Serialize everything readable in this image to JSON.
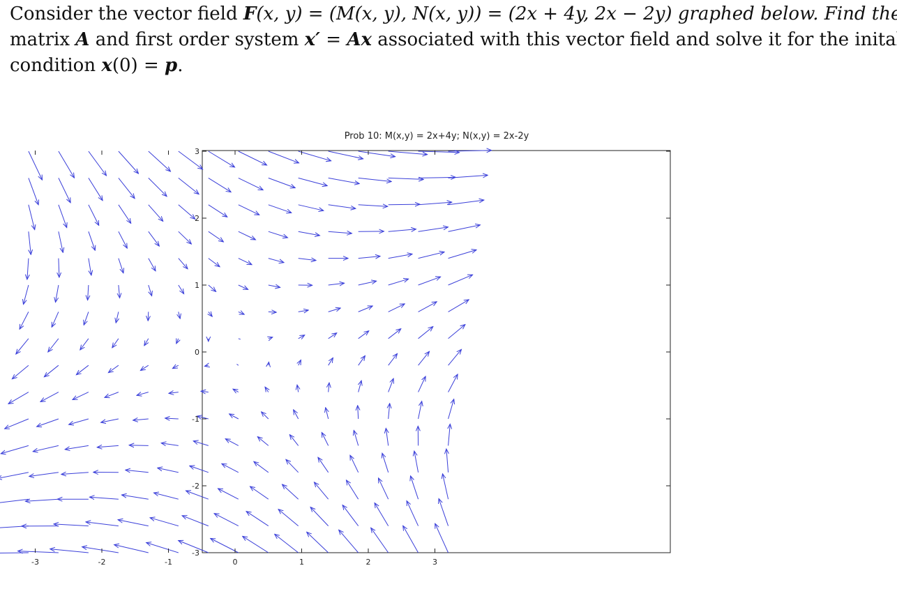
{
  "problem": {
    "line1_a": "Consider the vector field ",
    "line1_F": "F",
    "line1_b": "(x, y) = (M(x, y), N(x, y)) = (2x + 4y, 2x − 2y) graphed below. Find the",
    "line2_a": "matrix ",
    "line2_A": "A",
    "line2_b": " and first order system ",
    "line2_x": "x′",
    "line2_c": " = ",
    "line2_Ax": "Ax",
    "line2_d": " associated with this vector field and solve it for the inital",
    "line3_a": "condition ",
    "line3_x": "x",
    "line3_b": "(0) = ",
    "line3_p": "p",
    "line3_c": "."
  },
  "chart_data": {
    "type": "quiver",
    "title": "Prob 10: M(x,y) = 2x+4y; N(x,y) = 2x-2y",
    "xlabel": "",
    "ylabel": "",
    "field": {
      "M": "2x+4y",
      "N": "2x-2y"
    },
    "xlim": [
      -3.3,
      3.3
    ],
    "ylim": [
      -3,
      3
    ],
    "grid_x_start": -3.1,
    "grid_x_step": 0.45,
    "grid_x_count": 15,
    "grid_y_start": -3.0,
    "grid_y_step": 0.4,
    "grid_y_count": 16,
    "x_ticks": [
      "-3",
      "-2",
      "-1",
      "0",
      "1",
      "2",
      "3"
    ],
    "x_tick_values": [
      -3,
      -2,
      -1,
      0,
      1,
      2,
      3
    ],
    "y_ticks": [
      "3",
      "2",
      "1",
      "0",
      "-1",
      "-2",
      "-3"
    ],
    "y_tick_values": [
      3,
      2,
      1,
      0,
      -1,
      -2,
      -3
    ],
    "arrow_color": "#3a3fd9",
    "grid": false
  }
}
